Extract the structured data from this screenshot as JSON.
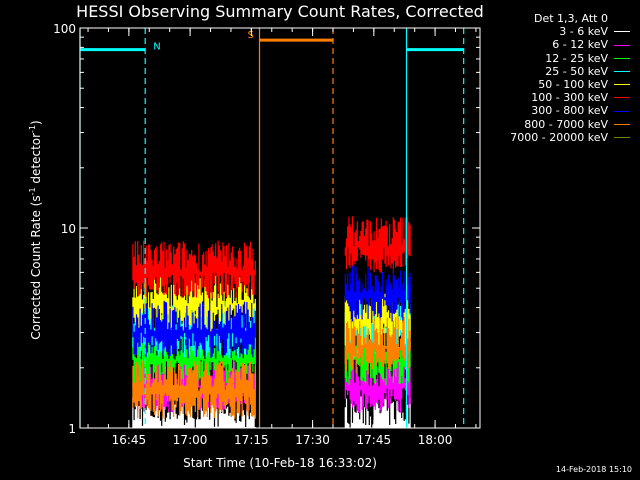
{
  "chart_data": {
    "type": "line",
    "title": "HESSI Observing Summary Count Rates, Corrected",
    "xlabel": "Start Time (10-Feb-18 16:33:02)",
    "ylabel": "Corrected Count Rate (s⁻¹ detector⁻¹)",
    "yscale": "log",
    "ylim": [
      1,
      100
    ],
    "xlim": [
      "16:33:02",
      "18:11:00"
    ],
    "x_ticks": [
      "16:45",
      "17:00",
      "17:15",
      "17:30",
      "17:45",
      "18:00"
    ],
    "y_ticks": [
      "1",
      "10",
      "100"
    ],
    "legend_header": "Det 1,3, Att 0",
    "series": [
      {
        "name": "3 - 6 keV",
        "color": "#ffffff",
        "segments": [
          {
            "start": "16:46",
            "end": "17:16",
            "level": 1.0
          },
          {
            "start": "17:38",
            "end": "17:54",
            "level": 1.0
          }
        ]
      },
      {
        "name": "6 - 12 keV",
        "color": "#ff00ff",
        "segments": [
          {
            "start": "16:46",
            "end": "17:16",
            "level": 1.6
          },
          {
            "start": "17:38",
            "end": "17:54",
            "level": 1.6
          }
        ]
      },
      {
        "name": "12 - 25 keV",
        "color": "#00ff00",
        "segments": [
          {
            "start": "16:46",
            "end": "17:16",
            "level": 2.2
          },
          {
            "start": "17:38",
            "end": "17:54",
            "level": 2.2
          }
        ]
      },
      {
        "name": "25 - 50 keV",
        "color": "#00ffff",
        "segments": [
          {
            "start": "16:46",
            "end": "17:16",
            "level": 3.0
          },
          {
            "start": "17:38",
            "end": "17:54",
            "level": 3.0
          }
        ]
      },
      {
        "name": "50 - 100 keV",
        "color": "#ffff00",
        "segments": [
          {
            "start": "16:46",
            "end": "17:16",
            "level": 4.0
          },
          {
            "start": "17:38",
            "end": "17:54",
            "level": 3.4
          }
        ]
      },
      {
        "name": "100 - 300 keV",
        "color": "#ff0000",
        "segments": [
          {
            "start": "16:46",
            "end": "17:16",
            "level": 6.0
          },
          {
            "start": "17:38",
            "end": "17:54",
            "level": 8.0
          }
        ]
      },
      {
        "name": "300 - 800 keV",
        "color": "#0000ff",
        "segments": [
          {
            "start": "16:46",
            "end": "17:16",
            "level": 3.0
          },
          {
            "start": "17:38",
            "end": "17:54",
            "level": 4.5
          }
        ]
      },
      {
        "name": "800 - 7000 keV",
        "color": "#ff8000",
        "segments": [
          {
            "start": "16:46",
            "end": "17:16",
            "level": 1.5
          },
          {
            "start": "17:38",
            "end": "17:54",
            "level": 2.5
          }
        ]
      },
      {
        "name": "7000 - 20000 keV",
        "color": "#808000",
        "segments": []
      }
    ],
    "annotations": [
      {
        "label": "N",
        "color": "#00ffff",
        "start": "16:33:02",
        "end": "16:49",
        "level": 78
      },
      {
        "label": "S",
        "color": "#ff8000",
        "start": "17:17",
        "end": "17:35",
        "level": 87
      },
      {
        "label": "",
        "color": "#00ffff",
        "start": "17:53",
        "end": "18:07",
        "level": 78
      }
    ],
    "vlines": [
      {
        "time": "16:33:02",
        "color": "#00ffff",
        "style": "solid"
      },
      {
        "time": "16:49",
        "color": "#00ffff",
        "style": "dashed"
      },
      {
        "time": "17:17",
        "color": "#ff8000",
        "style": "solid"
      },
      {
        "time": "17:35",
        "color": "#ff8000",
        "style": "dashed"
      },
      {
        "time": "17:53",
        "color": "#00ffff",
        "style": "solid"
      },
      {
        "time": "18:07",
        "color": "#00ffff",
        "style": "dashed"
      }
    ],
    "legend_position": "top-right-outside"
  },
  "footer": {
    "date": "14-Feb-2018 15:10"
  }
}
